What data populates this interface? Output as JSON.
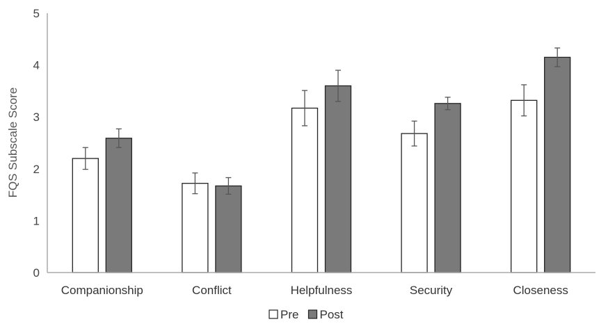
{
  "chart_data": {
    "type": "bar",
    "title": "",
    "xlabel": "",
    "ylabel": "FQS Subscale Score",
    "ylim": [
      0,
      5
    ],
    "yticks": [
      "0",
      "1",
      "2",
      "3",
      "4",
      "5"
    ],
    "categories": [
      "Companionship",
      "Conflict",
      "Helpfulness",
      "Security",
      "Closeness"
    ],
    "series": [
      {
        "name": "Pre",
        "color": "#ffffff",
        "values": [
          2.2,
          1.72,
          3.17,
          2.68,
          3.32
        ],
        "errors": [
          0.21,
          0.2,
          0.34,
          0.24,
          0.3
        ]
      },
      {
        "name": "Post",
        "color": "#7a7a7a",
        "values": [
          2.59,
          1.67,
          3.6,
          3.26,
          4.15
        ],
        "errors": [
          0.18,
          0.16,
          0.3,
          0.12,
          0.18
        ]
      }
    ],
    "grid": false,
    "legend_position": "bottom"
  }
}
